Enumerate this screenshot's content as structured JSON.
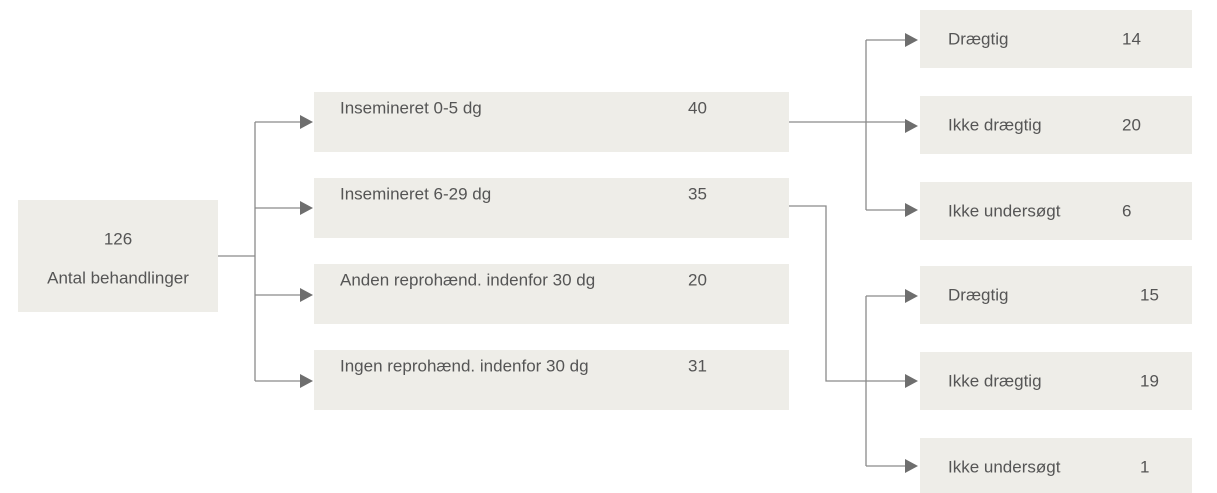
{
  "root": {
    "value": "126",
    "label": "Antal behandlinger"
  },
  "branches": [
    {
      "label": "Insemineret 0-5 dg",
      "value": "40",
      "outcomes": [
        {
          "label": "Drægtig",
          "value": "14"
        },
        {
          "label": "Ikke drægtig",
          "value": "20"
        },
        {
          "label": "Ikke undersøgt",
          "value": "6"
        }
      ]
    },
    {
      "label": "Insemineret 6-29 dg",
      "value": "35",
      "outcomes": [
        {
          "label": "Drægtig",
          "value": "15"
        },
        {
          "label": "Ikke drægtig",
          "value": "19"
        },
        {
          "label": "Ikke undersøgt",
          "value": "1"
        }
      ]
    },
    {
      "label": "Anden reprohænd. indenfor 30 dg",
      "value": "20"
    },
    {
      "label": "Ingen reprohænd. indenfor 30 dg",
      "value": "31"
    }
  ]
}
